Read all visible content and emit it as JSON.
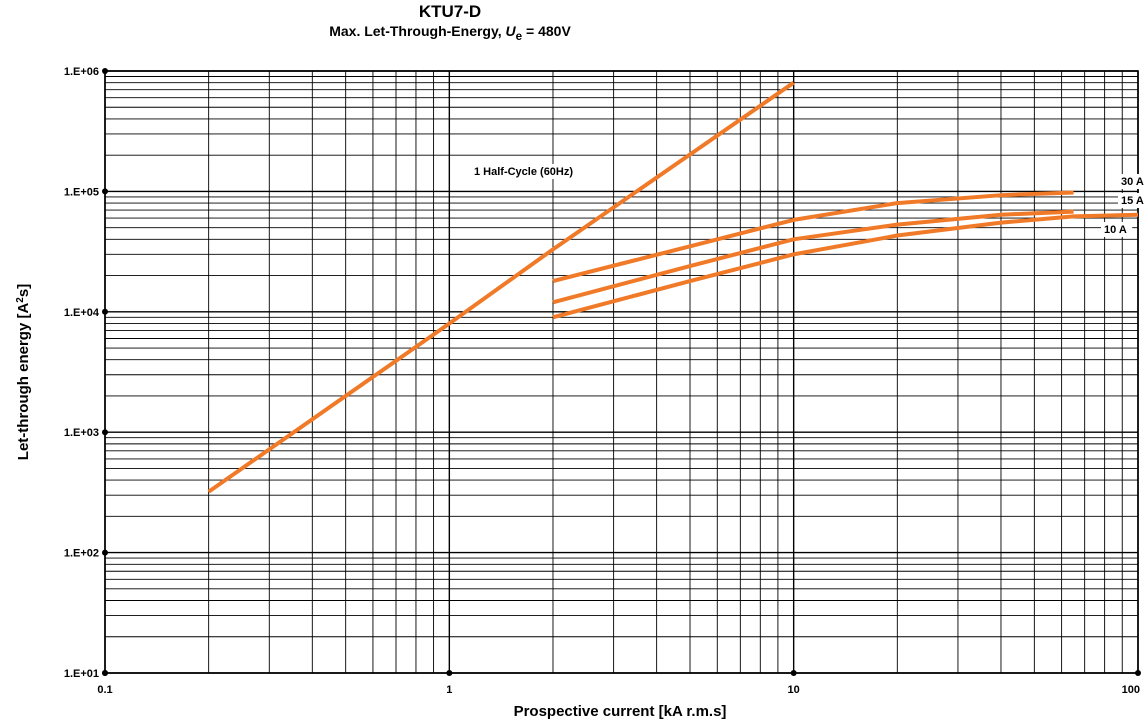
{
  "chart_data": {
    "type": "line",
    "title": "KTU7-D",
    "subtitle": {
      "prefix": "Max. Let-Through-Energy, ",
      "var": "U",
      "sub": "e",
      "suffix": " = 480V"
    },
    "xlabel": "Prospective current [kA r.m.s]",
    "ylabel": {
      "prefix": "Let-through energy [A",
      "sup": "2",
      "suffix": "s]"
    },
    "x_scale": "log",
    "y_scale": "log",
    "xlim": [
      0.1,
      100
    ],
    "ylim": [
      10,
      1000000
    ],
    "x_ticks": [
      {
        "value": 0.1,
        "label": "0.1"
      },
      {
        "value": 1,
        "label": "1"
      },
      {
        "value": 10,
        "label": "10"
      },
      {
        "value": 100,
        "label": "100"
      }
    ],
    "y_ticks": [
      {
        "value": 10,
        "label": "1.E+01"
      },
      {
        "value": 100,
        "label": "1.E+02"
      },
      {
        "value": 1000,
        "label": "1.E+03"
      },
      {
        "value": 10000,
        "label": "1.E+04"
      },
      {
        "value": 100000,
        "label": "1.E+05"
      },
      {
        "value": 1000000,
        "label": "1.E+06"
      }
    ],
    "grid": true,
    "line_color": "#f07a28",
    "series": [
      {
        "name": "1 Half-Cycle (60Hz)",
        "points": [
          [
            0.2,
            320
          ],
          [
            1,
            8000
          ],
          [
            2,
            33000
          ],
          [
            10,
            800000
          ]
        ]
      },
      {
        "name": "30 A",
        "points": [
          [
            2,
            18000
          ],
          [
            5,
            35000
          ],
          [
            10,
            58000
          ],
          [
            20,
            80000
          ],
          [
            40,
            93000
          ],
          [
            65,
            98000
          ]
        ]
      },
      {
        "name": "15 A",
        "points": [
          [
            2,
            12000
          ],
          [
            5,
            24000
          ],
          [
            10,
            40000
          ],
          [
            20,
            53000
          ],
          [
            40,
            64000
          ],
          [
            65,
            68000
          ]
        ]
      },
      {
        "name": "10 A",
        "points": [
          [
            2,
            9000
          ],
          [
            5,
            18000
          ],
          [
            10,
            30000
          ],
          [
            20,
            43000
          ],
          [
            40,
            55000
          ],
          [
            65,
            62000
          ],
          [
            100,
            64000
          ]
        ]
      }
    ]
  }
}
